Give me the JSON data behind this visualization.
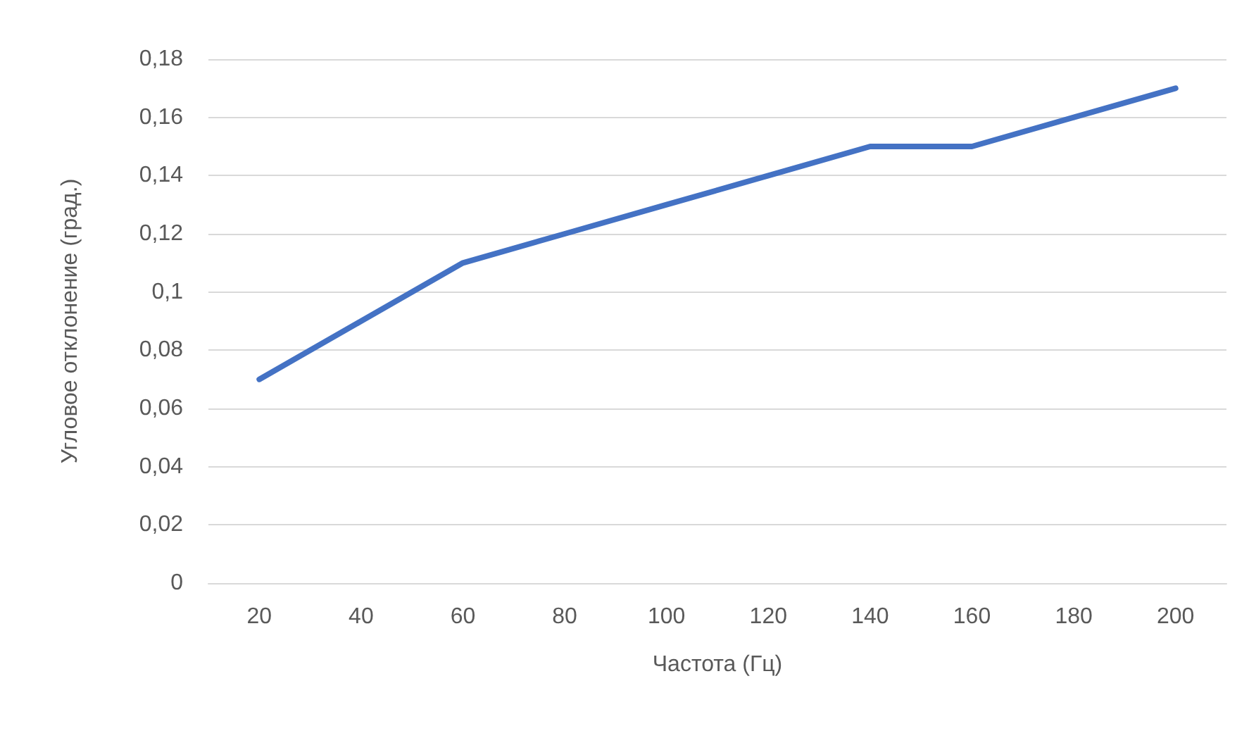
{
  "chart_data": {
    "type": "line",
    "xlabel": "Частота (Гц)",
    "ylabel": "Угловое отклонение (град.)",
    "categories": [
      "20",
      "40",
      "60",
      "80",
      "100",
      "120",
      "140",
      "160",
      "180",
      "200"
    ],
    "series": [
      {
        "color": "#4472c4",
        "values": [
          0.07,
          0.09,
          0.11,
          0.12,
          0.13,
          0.14,
          0.15,
          0.15,
          0.16,
          0.17
        ]
      }
    ],
    "ylim": [
      0,
      0.18
    ],
    "yticks": [
      0,
      {
        "value": 0.02,
        "label": "0,02"
      },
      {
        "value": 0.04,
        "label": "0,04"
      },
      {
        "value": 0.06,
        "label": "0,06"
      },
      {
        "value": 0.08,
        "label": "0,08"
      },
      {
        "value": 0.1,
        "label": "0,1"
      },
      {
        "value": 0.12,
        "label": "0,12"
      },
      {
        "value": 0.14,
        "label": "0,14"
      },
      {
        "value": 0.16,
        "label": "0,16"
      },
      {
        "value": 0.18,
        "label": "0,18"
      }
    ],
    "grid": "y",
    "marker": "none",
    "line_style": "solid"
  }
}
